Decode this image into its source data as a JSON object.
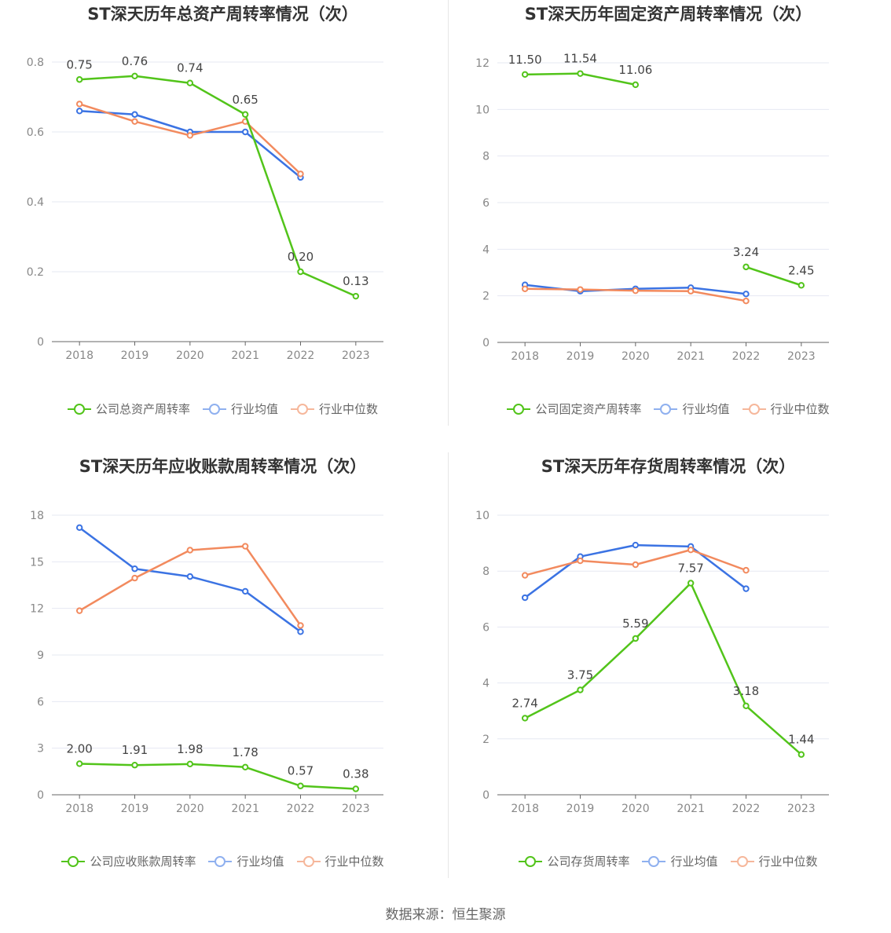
{
  "colors": {
    "company": "#52c41a",
    "average": "#3b73e3",
    "median": "#f28a5e",
    "average_legend": "#8fb0ef",
    "median_legend": "#f6b79b",
    "grid": "#e6e8f2",
    "axis": "#666666",
    "tick_text": "#888888",
    "label_text": "#444444"
  },
  "source": "数据来源：恒生聚源",
  "chart_data": [
    {
      "type": "line",
      "title": "ST深天历年总资产周转率情况（次）",
      "x": [
        "2018",
        "2019",
        "2020",
        "2021",
        "2022",
        "2023"
      ],
      "ylim": [
        0,
        0.8
      ],
      "yticks": [
        "0",
        "0.2",
        "0.4",
        "0.6",
        "0.8"
      ],
      "ytick_values": [
        0,
        0.2,
        0.4,
        0.6,
        0.8
      ],
      "legend_position": "bottom",
      "grid": true,
      "series": [
        {
          "key": "company",
          "name": "公司总资产周转率",
          "values": [
            0.75,
            0.76,
            0.74,
            0.65,
            0.2,
            0.13
          ],
          "labels": [
            "0.75",
            "0.76",
            "0.74",
            "0.65",
            "0.20",
            "0.13"
          ]
        },
        {
          "key": "average",
          "name": "行业均值",
          "values": [
            0.66,
            0.65,
            0.6,
            0.6,
            0.47,
            null
          ]
        },
        {
          "key": "median",
          "name": "行业中位数",
          "values": [
            0.68,
            0.63,
            0.59,
            0.63,
            0.48,
            null
          ]
        }
      ]
    },
    {
      "type": "line",
      "title": "ST深天历年固定资产周转率情况（次）",
      "x": [
        "2018",
        "2019",
        "2020",
        "2021",
        "2022",
        "2023"
      ],
      "ylim": [
        0,
        12
      ],
      "yticks": [
        "0",
        "2",
        "4",
        "6",
        "8",
        "10",
        "12"
      ],
      "ytick_values": [
        0,
        2,
        4,
        6,
        8,
        10,
        12
      ],
      "legend_position": "bottom",
      "grid": true,
      "series": [
        {
          "key": "company",
          "name": "公司固定资产周转率",
          "values": [
            11.5,
            11.54,
            11.06,
            null,
            3.24,
            2.45
          ],
          "labels": [
            "11.50",
            "11.54",
            "11.06",
            "",
            "3.24",
            "2.45"
          ]
        },
        {
          "key": "average",
          "name": "行业均值",
          "values": [
            2.47,
            2.2,
            2.3,
            2.35,
            2.08,
            null
          ]
        },
        {
          "key": "median",
          "name": "行业中位数",
          "values": [
            2.3,
            2.27,
            2.22,
            2.2,
            1.78,
            null
          ]
        }
      ]
    },
    {
      "type": "line",
      "title": "ST深天历年应收账款周转率情况（次）",
      "x": [
        "2018",
        "2019",
        "2020",
        "2021",
        "2022",
        "2023"
      ],
      "ylim": [
        0,
        18
      ],
      "yticks": [
        "0",
        "3",
        "6",
        "9",
        "12",
        "15",
        "18"
      ],
      "ytick_values": [
        0,
        3,
        6,
        9,
        12,
        15,
        18
      ],
      "legend_position": "bottom",
      "grid": true,
      "series": [
        {
          "key": "company",
          "name": "公司应收账款周转率",
          "values": [
            2.0,
            1.91,
            1.98,
            1.78,
            0.57,
            0.38
          ],
          "labels": [
            "2.00",
            "1.91",
            "1.98",
            "1.78",
            "0.57",
            "0.38"
          ]
        },
        {
          "key": "average",
          "name": "行业均值",
          "values": [
            17.2,
            14.55,
            14.05,
            13.1,
            10.5,
            null
          ]
        },
        {
          "key": "median",
          "name": "行业中位数",
          "values": [
            11.85,
            13.95,
            15.75,
            16.0,
            10.9,
            null
          ]
        }
      ]
    },
    {
      "type": "line",
      "title": "ST深天历年存货周转率情况（次）",
      "x": [
        "2018",
        "2019",
        "2020",
        "2021",
        "2022",
        "2023"
      ],
      "ylim": [
        0,
        10
      ],
      "yticks": [
        "0",
        "2",
        "4",
        "6",
        "8",
        "10"
      ],
      "ytick_values": [
        0,
        2,
        4,
        6,
        8,
        10
      ],
      "legend_position": "bottom",
      "grid": true,
      "series": [
        {
          "key": "company",
          "name": "公司存货周转率",
          "values": [
            2.74,
            3.75,
            5.59,
            7.57,
            3.18,
            1.44
          ],
          "labels": [
            "2.74",
            "3.75",
            "5.59",
            "7.57",
            "3.18",
            "1.44"
          ]
        },
        {
          "key": "average",
          "name": "行业均值",
          "values": [
            7.05,
            8.52,
            8.93,
            8.88,
            7.37,
            null
          ]
        },
        {
          "key": "median",
          "name": "行业中位数",
          "values": [
            7.85,
            8.37,
            8.23,
            8.76,
            8.03,
            null
          ]
        }
      ]
    }
  ]
}
